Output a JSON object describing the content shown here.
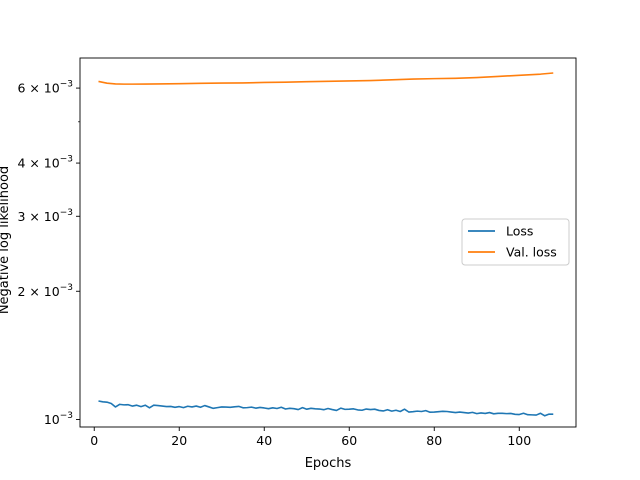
{
  "chart_data": {
    "type": "line",
    "title": "",
    "xlabel": "Epochs",
    "ylabel": "Negative log likelihood",
    "xlim": [
      -3.35,
      113.35
    ],
    "ylim": [
      0.00096,
      0.00706
    ],
    "y_scale": "log",
    "grid": false,
    "legend_position": "center-right",
    "x_ticks": [
      {
        "value": 0,
        "label": "0"
      },
      {
        "value": 20,
        "label": "20"
      },
      {
        "value": 40,
        "label": "40"
      },
      {
        "value": 60,
        "label": "60"
      },
      {
        "value": 80,
        "label": "80"
      },
      {
        "value": 100,
        "label": "100"
      }
    ],
    "y_major_ticks": [
      {
        "value": 0.001,
        "mantissa": "10",
        "exponent": "−3"
      },
      {
        "value": 0.002,
        "mantissa": "2 × 10",
        "exponent": "−3"
      },
      {
        "value": 0.003,
        "mantissa": "3 × 10",
        "exponent": "−3"
      },
      {
        "value": 0.004,
        "mantissa": "4 × 10",
        "exponent": "−3"
      },
      {
        "value": 0.006,
        "mantissa": "6 × 10",
        "exponent": "−3"
      }
    ],
    "y_minor_ticks": [
      0.005
    ],
    "series": [
      {
        "name": "Loss",
        "color": "#1f77b4",
        "x": [
          1,
          2,
          3,
          4,
          5,
          6,
          7,
          8,
          9,
          10,
          11,
          12,
          13,
          14,
          15,
          16,
          17,
          18,
          19,
          20,
          21,
          22,
          23,
          24,
          25,
          26,
          27,
          28,
          29,
          30,
          31,
          32,
          33,
          34,
          35,
          36,
          37,
          38,
          39,
          40,
          41,
          42,
          43,
          44,
          45,
          46,
          47,
          48,
          49,
          50,
          51,
          52,
          53,
          54,
          55,
          56,
          57,
          58,
          59,
          60,
          61,
          62,
          63,
          64,
          65,
          66,
          67,
          68,
          69,
          70,
          71,
          72,
          73,
          74,
          75,
          76,
          77,
          78,
          79,
          80,
          81,
          82,
          83,
          84,
          85,
          86,
          87,
          88,
          89,
          90,
          91,
          92,
          93,
          94,
          95,
          96,
          97,
          98,
          99,
          100,
          101,
          102,
          103,
          104,
          105,
          106,
          107,
          108
        ],
        "y": [
          0.001105,
          0.0011,
          0.001098,
          0.00109,
          0.00107,
          0.001085,
          0.001082,
          0.001083,
          0.001075,
          0.00108,
          0.001072,
          0.00108,
          0.001065,
          0.00108,
          0.001078,
          0.001075,
          0.001072,
          0.001073,
          0.001068,
          0.001072,
          0.001066,
          0.001074,
          0.00107,
          0.001075,
          0.001068,
          0.001078,
          0.00107,
          0.001062,
          0.001066,
          0.00107,
          0.001069,
          0.001068,
          0.001071,
          0.001073,
          0.001065,
          0.001066,
          0.001069,
          0.001063,
          0.001067,
          0.001064,
          0.00106,
          0.001065,
          0.001061,
          0.001068,
          0.001058,
          0.001062,
          0.00106,
          0.001055,
          0.001066,
          0.001057,
          0.001062,
          0.001059,
          0.001058,
          0.001054,
          0.001061,
          0.001055,
          0.00105,
          0.001063,
          0.001056,
          0.001057,
          0.001059,
          0.001053,
          0.001051,
          0.001058,
          0.001055,
          0.001057,
          0.00105,
          0.001047,
          0.001054,
          0.001046,
          0.001051,
          0.001044,
          0.001057,
          0.001041,
          0.001043,
          0.001046,
          0.001044,
          0.001049,
          0.00104,
          0.001041,
          0.001043,
          0.001045,
          0.001044,
          0.001041,
          0.001038,
          0.001041,
          0.001038,
          0.001035,
          0.001039,
          0.001032,
          0.001036,
          0.001033,
          0.001038,
          0.001031,
          0.001034,
          0.001034,
          0.001032,
          0.001033,
          0.001028,
          0.001027,
          0.001034,
          0.001026,
          0.001025,
          0.001024,
          0.001034,
          0.00102,
          0.001029,
          0.001029
        ]
      },
      {
        "name": "Val. loss",
        "color": "#ff7f0e",
        "x": [
          1,
          3,
          5,
          7,
          9,
          12,
          15,
          20,
          25,
          30,
          35,
          40,
          45,
          50,
          55,
          60,
          65,
          70,
          75,
          80,
          85,
          90,
          95,
          100,
          105,
          108
        ],
        "y": [
          0.00622,
          0.00616,
          0.006135,
          0.00613,
          0.00613,
          0.006133,
          0.006136,
          0.006145,
          0.006158,
          0.006165,
          0.00617,
          0.006185,
          0.006195,
          0.00621,
          0.006225,
          0.006235,
          0.00625,
          0.006275,
          0.0063,
          0.006315,
          0.006325,
          0.00635,
          0.00639,
          0.00643,
          0.00647,
          0.00651
        ]
      }
    ]
  }
}
